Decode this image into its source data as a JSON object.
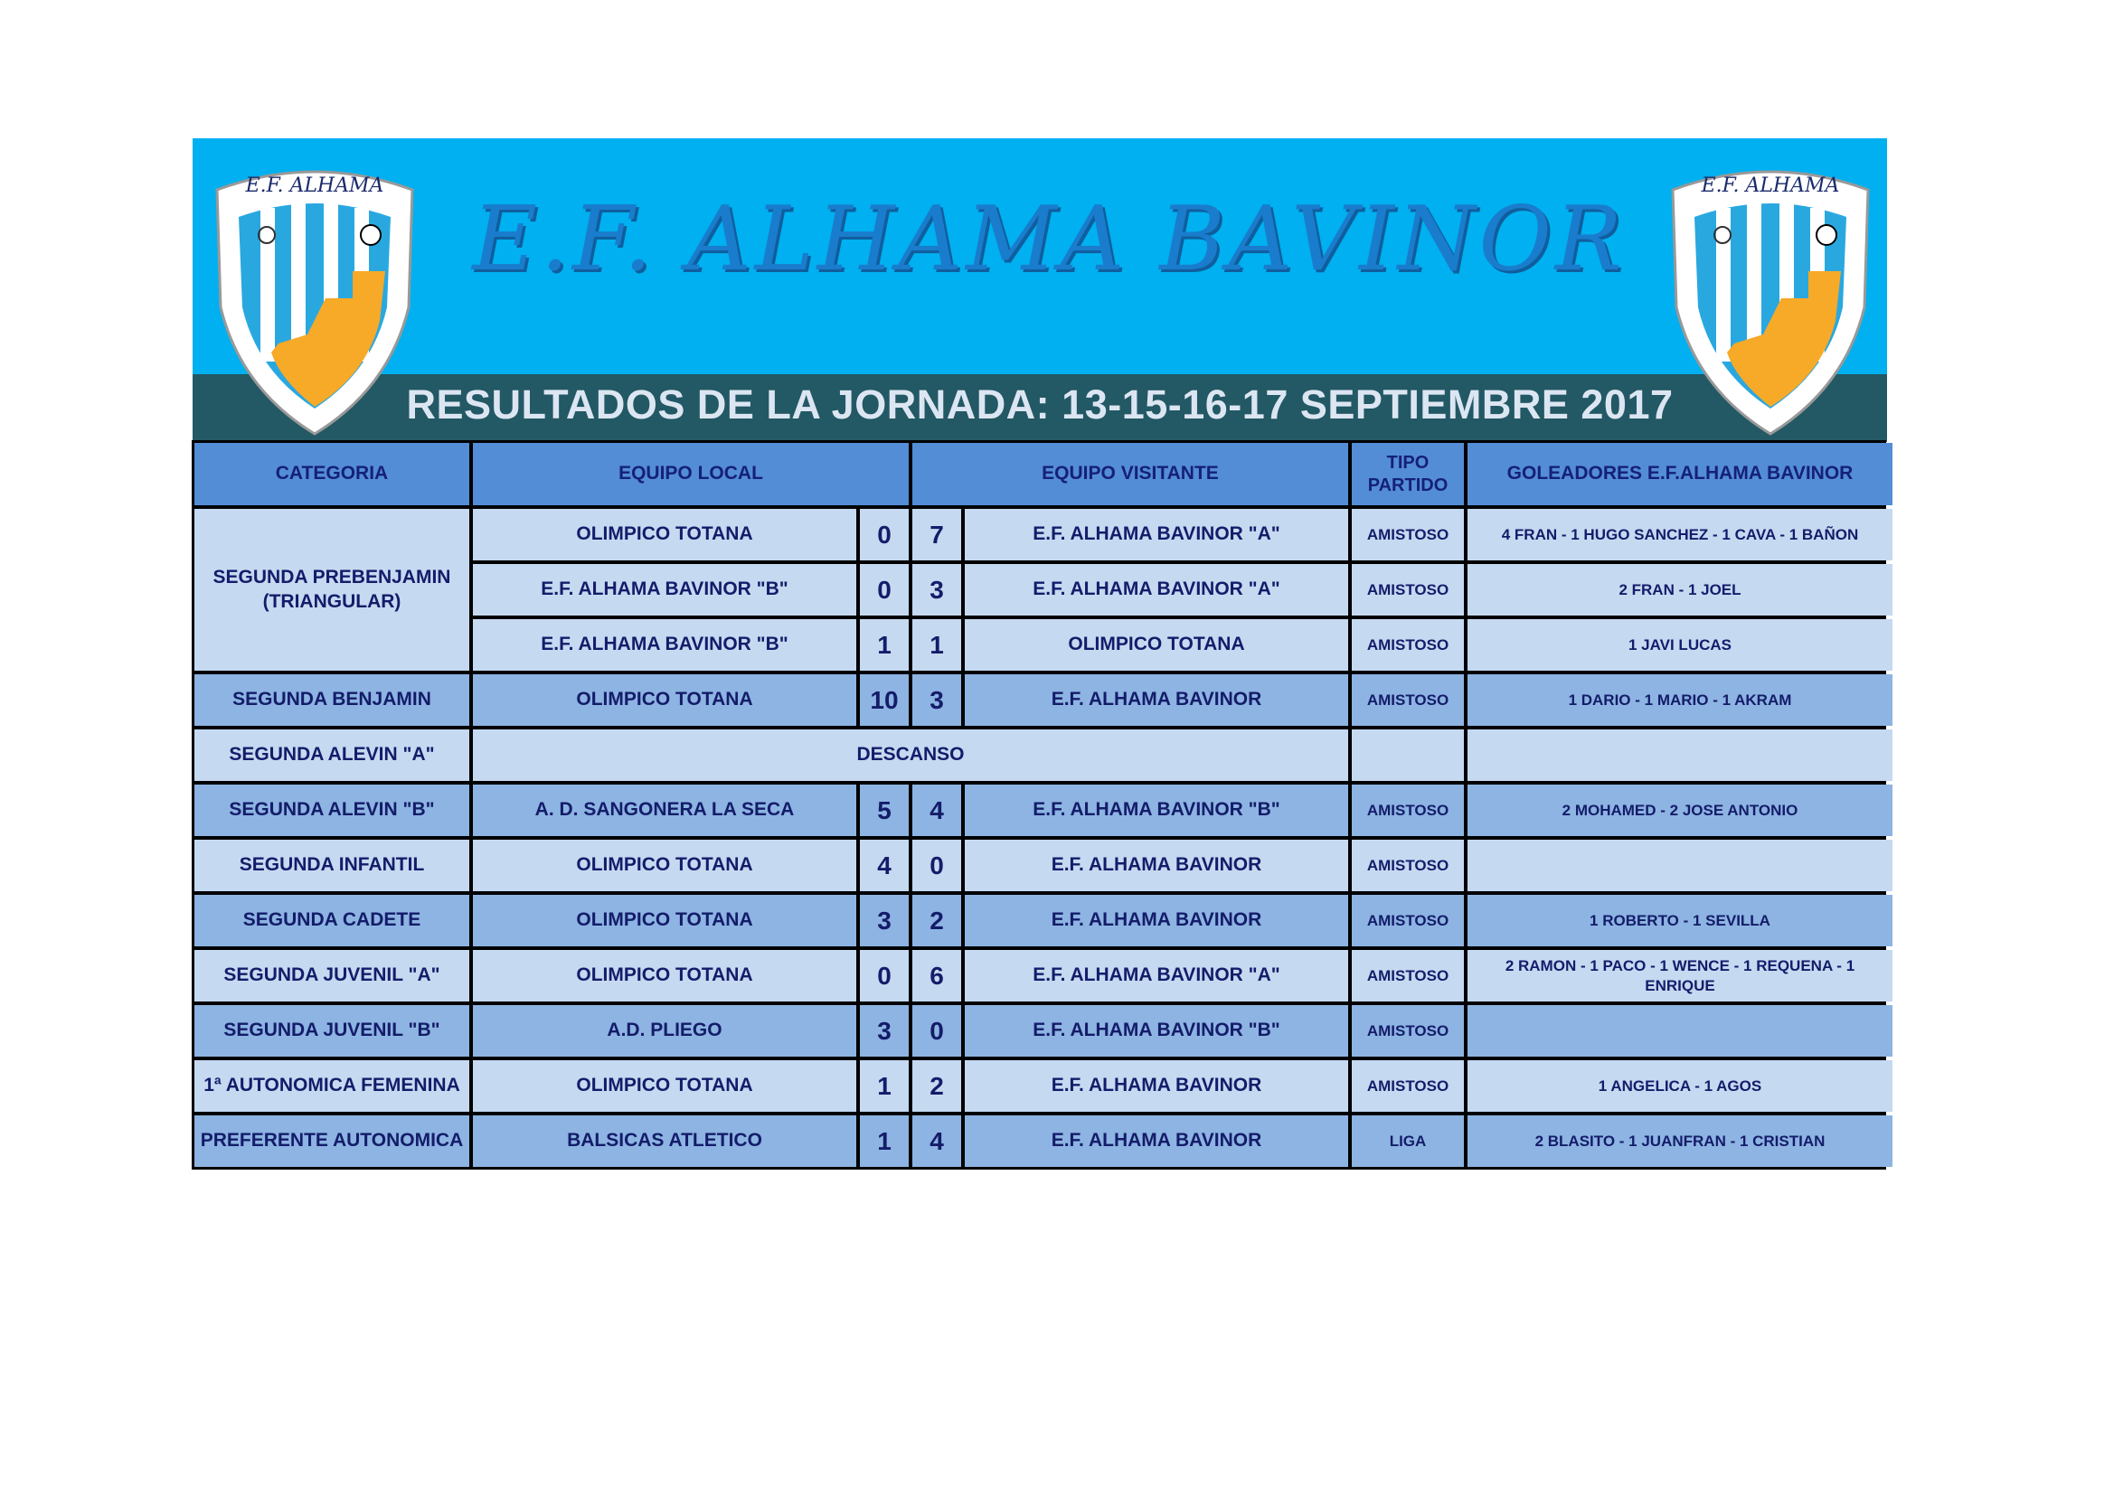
{
  "header": {
    "title": "E.F. ALHAMA BAVINOR",
    "subtitle": "RESULTADOS DE LA JORNADA:  13-15-16-17 SEPTIEMBRE  2017",
    "logo_text": "E.F. ALHAMA"
  },
  "colors": {
    "banner": "#00b0f0",
    "band": "#235865",
    "header_cell": "#538dd5",
    "row_light": "#c5d9f1",
    "row_dark": "#8db4e2",
    "text": "#141c6a"
  },
  "table": {
    "columns": [
      "CATEGORIA",
      "EQUIPO LOCAL",
      "EQUIPO VISITANTE",
      "TIPO PARTIDO",
      "GOLEADORES E.F.ALHAMA BAVINOR"
    ],
    "groups": [
      {
        "categoria": "SEGUNDA PREBENJAMIN (TRIANGULAR)",
        "shade": "light",
        "matches": [
          {
            "local": "OLIMPICO TOTANA",
            "goles_local": "0",
            "goles_visitante": "7",
            "visitante": "E.F. ALHAMA BAVINOR \"A\"",
            "tipo": "AMISTOSO",
            "goleadores": "4 FRAN - 1 HUGO SANCHEZ - 1 CAVA - 1 BAÑON"
          },
          {
            "local": "E.F. ALHAMA BAVINOR \"B\"",
            "goles_local": "0",
            "goles_visitante": "3",
            "visitante": "E.F. ALHAMA BAVINOR \"A\"",
            "tipo": "AMISTOSO",
            "goleadores": "2 FRAN - 1 JOEL"
          },
          {
            "local": "E.F. ALHAMA BAVINOR \"B\"",
            "goles_local": "1",
            "goles_visitante": "1",
            "visitante": "OLIMPICO TOTANA",
            "tipo": "AMISTOSO",
            "goleadores": "1 JAVI LUCAS"
          }
        ]
      },
      {
        "categoria": "SEGUNDA BENJAMIN",
        "shade": "dark",
        "matches": [
          {
            "local": "OLIMPICO TOTANA",
            "goles_local": "10",
            "goles_visitante": "3",
            "visitante": "E.F. ALHAMA BAVINOR",
            "tipo": "AMISTOSO",
            "goleadores": "1 DARIO - 1 MARIO - 1 AKRAM"
          }
        ]
      },
      {
        "categoria": "SEGUNDA ALEVIN \"A\"",
        "shade": "light",
        "descanso": "DESCANSO",
        "matches": [
          {
            "tipo": "",
            "goleadores": ""
          }
        ]
      },
      {
        "categoria": "SEGUNDA ALEVIN \"B\"",
        "shade": "dark",
        "matches": [
          {
            "local": "A. D. SANGONERA LA SECA",
            "goles_local": "5",
            "goles_visitante": "4",
            "visitante": "E.F. ALHAMA BAVINOR \"B\"",
            "tipo": "AMISTOSO",
            "goleadores": "2 MOHAMED - 2 JOSE ANTONIO"
          }
        ]
      },
      {
        "categoria": "SEGUNDA INFANTIL",
        "shade": "light",
        "matches": [
          {
            "local": "OLIMPICO TOTANA",
            "goles_local": "4",
            "goles_visitante": "0",
            "visitante": "E.F. ALHAMA BAVINOR",
            "tipo": "AMISTOSO",
            "goleadores": ""
          }
        ]
      },
      {
        "categoria": "SEGUNDA CADETE",
        "shade": "dark",
        "matches": [
          {
            "local": "OLIMPICO TOTANA",
            "goles_local": "3",
            "goles_visitante": "2",
            "visitante": "E.F. ALHAMA BAVINOR",
            "tipo": "AMISTOSO",
            "goleadores": "1 ROBERTO - 1 SEVILLA"
          }
        ]
      },
      {
        "categoria": "SEGUNDA JUVENIL \"A\"",
        "shade": "light",
        "matches": [
          {
            "local": "OLIMPICO TOTANA",
            "goles_local": "0",
            "goles_visitante": "6",
            "visitante": "E.F. ALHAMA BAVINOR \"A\"",
            "tipo": "AMISTOSO",
            "goleadores": "2 RAMON - 1 PACO - 1 WENCE - 1 REQUENA - 1 ENRIQUE"
          }
        ]
      },
      {
        "categoria": "SEGUNDA JUVENIL \"B\"",
        "shade": "dark",
        "matches": [
          {
            "local": "A.D. PLIEGO",
            "goles_local": "3",
            "goles_visitante": "0",
            "visitante": "E.F. ALHAMA BAVINOR \"B\"",
            "tipo": "AMISTOSO",
            "goleadores": ""
          }
        ]
      },
      {
        "categoria": "1ª AUTONOMICA FEMENINA",
        "shade": "light",
        "matches": [
          {
            "local": "OLIMPICO TOTANA",
            "goles_local": "1",
            "goles_visitante": "2",
            "visitante": "E.F. ALHAMA BAVINOR",
            "tipo": "AMISTOSO",
            "goleadores": "1 ANGELICA - 1 AGOS"
          }
        ]
      },
      {
        "categoria": "PREFERENTE AUTONOMICA",
        "shade": "dark",
        "matches": [
          {
            "local": "BALSICAS ATLETICO",
            "goles_local": "1",
            "goles_visitante": "4",
            "visitante": "E.F. ALHAMA BAVINOR",
            "tipo": "LIGA",
            "goleadores": "2 BLASITO - 1 JUANFRAN - 1 CRISTIAN"
          }
        ]
      }
    ]
  }
}
